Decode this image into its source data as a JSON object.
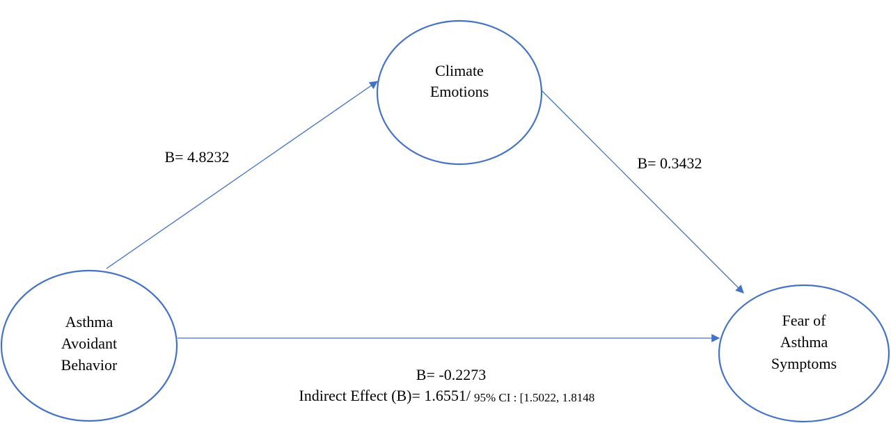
{
  "nodes": [
    {
      "label": [
        "Climate",
        "Emotions"
      ]
    },
    {
      "label": [
        "Asthma",
        "Avoidant",
        "Behavior"
      ]
    },
    {
      "label": [
        "Fear of",
        "Asthma",
        "Symptoms"
      ]
    }
  ],
  "edges": [
    {
      "label": "B= 4.8232"
    },
    {
      "label": "B= 0.3432"
    },
    {
      "label": "B= -0.2273"
    }
  ],
  "indirect_effect": {
    "estimate": "Indirect Effect (B)= 1.6551/",
    "ci": "95% CI : [1.5022, 1.8148"
  }
}
